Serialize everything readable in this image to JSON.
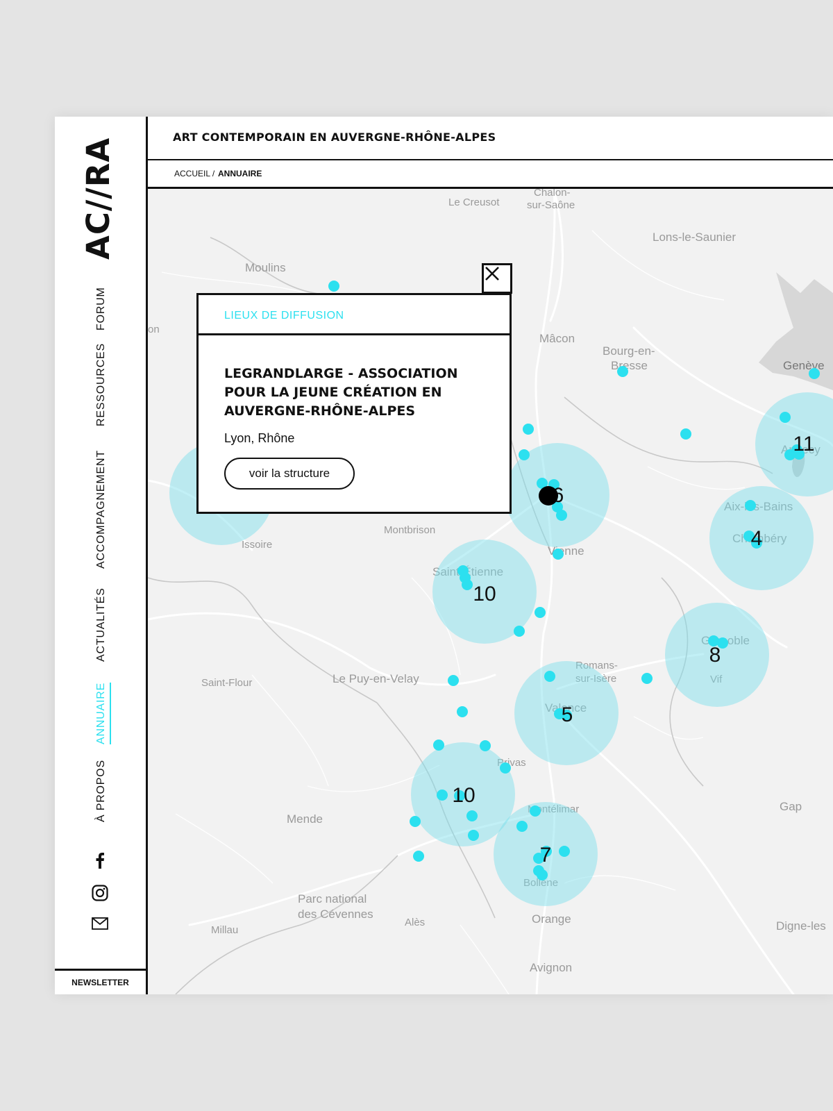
{
  "brand": {
    "logo": "AC//RA"
  },
  "header": {
    "site_title": "ART CONTEMPORAIN EN AUVERGNE-RHÔNE-ALPES"
  },
  "breadcrumb": {
    "home": "ACCUEIL /",
    "current": "ANNUAIRE"
  },
  "nav": {
    "forum": "FORUM",
    "ressources": "RESSOURCES",
    "accompagnement": "ACCOMPAGNEMENT",
    "actualites": "ACTUALITÉS",
    "annuaire": "ANNUAIRE",
    "a_propos": "À PROPOS",
    "active": "annuaire"
  },
  "social": {
    "icons": [
      "facebook-icon",
      "instagram-icon",
      "mail-icon"
    ]
  },
  "newsletter": "NEWSLETTER",
  "popup": {
    "category": "LIEUX DE DIFFUSION",
    "title": "LEGRANDLARGE - ASSOCIATION POUR LA JEUNE CRÉATION EN AUVERGNE-RHÔNE-ALPES",
    "location": "Lyon, Rhône",
    "button": "voir la structure"
  },
  "map": {
    "places": {
      "chalon": "Chalon-",
      "chalon2": "sur-Saône",
      "creusot": "Le Creusot",
      "lons": "Lons-le-Saunier",
      "moulins": "Moulins",
      "macon": "Mâcon",
      "bourg": "Bourg-en-",
      "bourg2": "Bresse",
      "geneve": "Genève",
      "montbrison": "Montbrison",
      "issoire": "Issoire",
      "vienne": "Vienne",
      "saint_etienne": "Saint-Étienne",
      "aix": "Aix-les-Bains",
      "chambery": "Chambéry",
      "annecy": "Annecy",
      "grenoble": "Grenoble",
      "vif": "Vif",
      "saint_flour": "Saint-Flour",
      "le_puy": "Le Puy-en-Velay",
      "romans": "Romans-",
      "romans2": "sur-Isère",
      "valence": "Valence",
      "privas": "Privas",
      "montelimar": "Montélimar",
      "mende": "Mende",
      "bollene": "Bollène",
      "gap": "Gap",
      "cevennes": "Parc national",
      "cevennes2": "des Cévennes",
      "millau": "Millau",
      "ales": "Alès",
      "orange": "Orange",
      "digne": "Digne-les",
      "avignon": "Avignon",
      "left_edge": "on"
    },
    "clusters": [
      {
        "id": "lyon",
        "count": "6"
      },
      {
        "id": "annecy",
        "count": "11"
      },
      {
        "id": "chambery",
        "count": "4"
      },
      {
        "id": "saint-etienne",
        "count": "10"
      },
      {
        "id": "grenoble",
        "count": "8"
      },
      {
        "id": "valence",
        "count": "5"
      },
      {
        "id": "privas",
        "count": "10"
      },
      {
        "id": "bollene",
        "count": "7"
      },
      {
        "id": "clermont",
        "count": ""
      }
    ],
    "marker_color": "#2ce0ef",
    "cluster_color": "#78ddec",
    "selected_marker_color": "#000000"
  }
}
